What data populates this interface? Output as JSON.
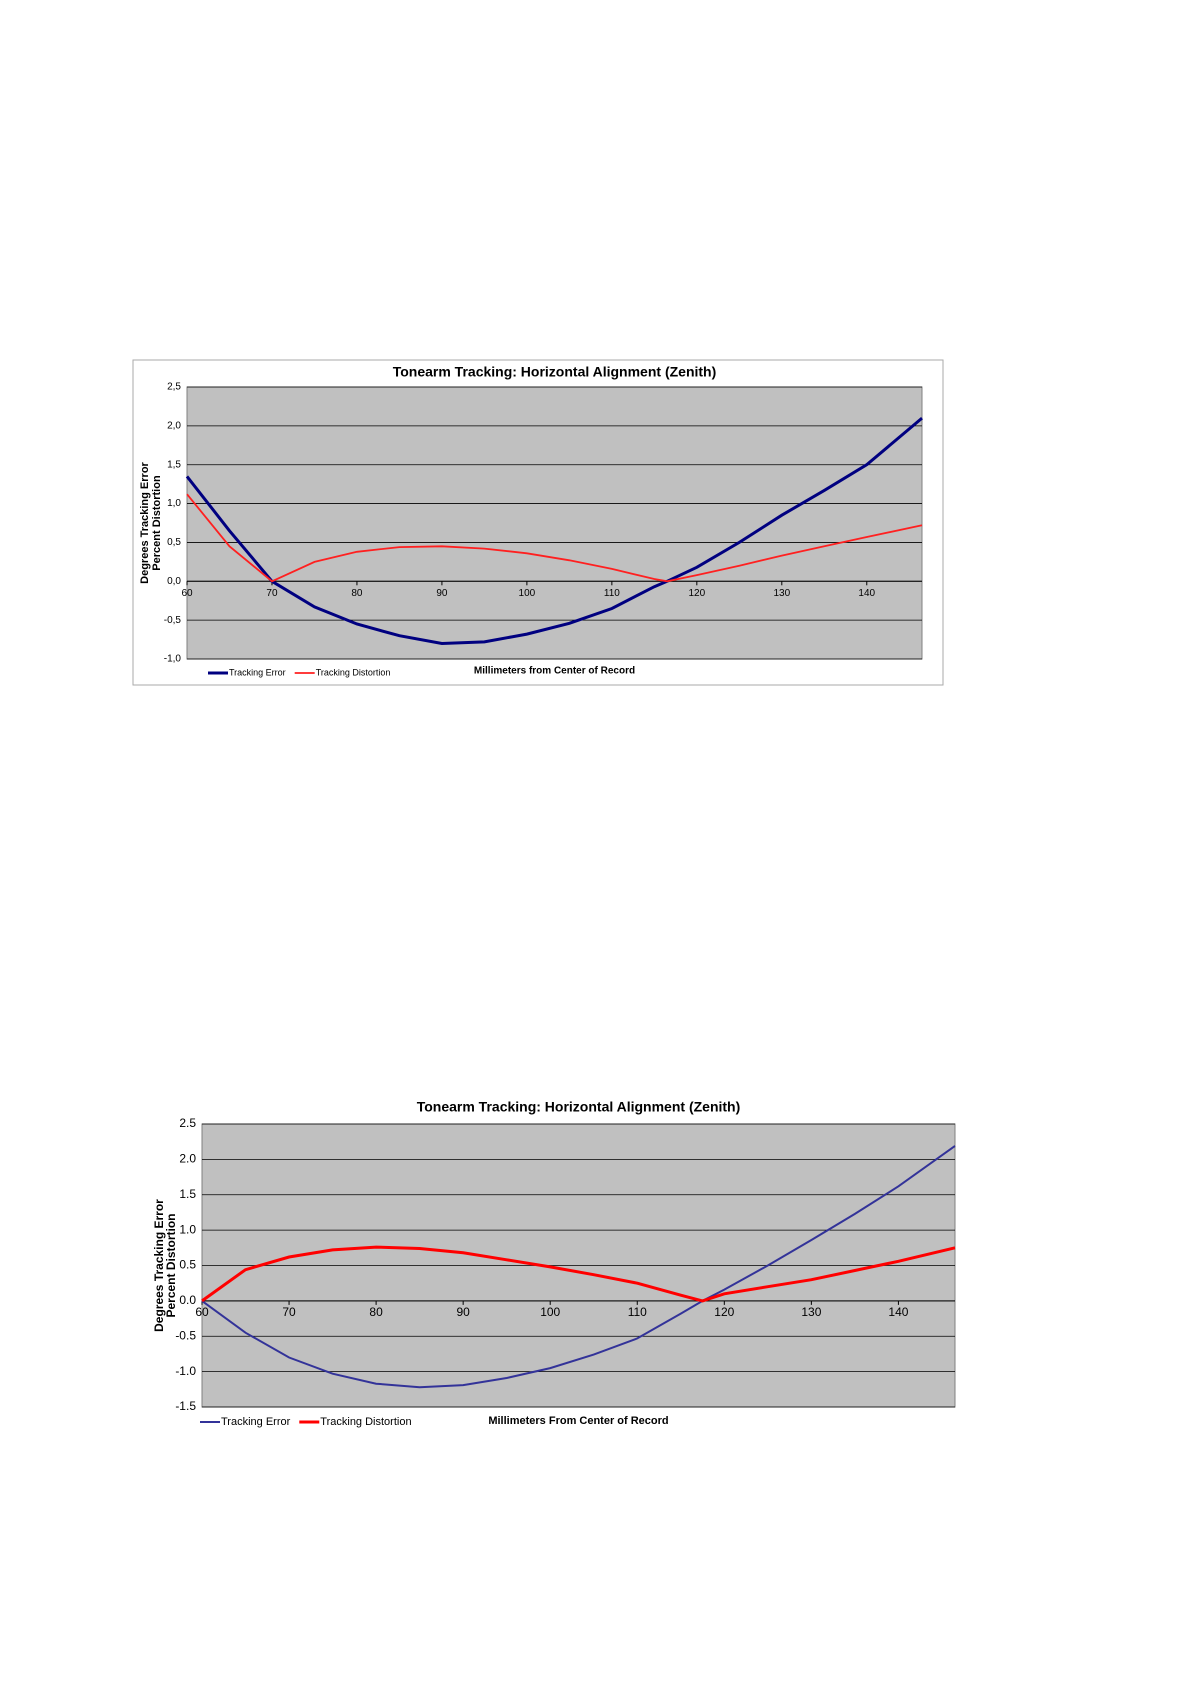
{
  "chart_data": [
    {
      "type": "line",
      "title": "Tonearm Tracking:  Horizontal Alignment (Zenith)",
      "xlabel": "Millimeters from Center of Record",
      "ylabel": [
        "Degrees Tracking Error",
        "Percent Distortion"
      ],
      "x": [
        60,
        65,
        70,
        75,
        80,
        85,
        90,
        95,
        100,
        105,
        110,
        115,
        116.5,
        120,
        125,
        130,
        135,
        140,
        146.5
      ],
      "series": [
        {
          "name": "Tracking Error",
          "color": "#000080",
          "values": [
            1.35,
            0.65,
            0,
            -0.33,
            -0.55,
            -0.7,
            -0.8,
            -0.78,
            -0.68,
            -0.54,
            -0.35,
            -0.07,
            0,
            0.18,
            0.5,
            0.85,
            1.17,
            1.5,
            2.1
          ]
        },
        {
          "name": "Tracking Distortion",
          "color": "#ff2020",
          "values": [
            1.12,
            0.45,
            0,
            0.25,
            0.38,
            0.44,
            0.45,
            0.42,
            0.36,
            0.27,
            0.16,
            0.03,
            0,
            0.08,
            0.2,
            0.33,
            0.45,
            0.57,
            0.72
          ]
        }
      ],
      "xlim": [
        60,
        146.5
      ],
      "xticks": [
        60,
        70,
        80,
        90,
        100,
        110,
        120,
        130,
        140
      ],
      "ylim": [
        -1,
        2.5
      ],
      "yticks": [
        {
          "value": 2.5,
          "label": "2,5"
        },
        {
          "value": 2,
          "label": "2,0"
        },
        {
          "value": 1.5,
          "label": "1,5"
        },
        {
          "value": 1,
          "label": "1,0"
        },
        {
          "value": 0.5,
          "label": "0,5"
        },
        {
          "value": 0,
          "label": "0,0"
        },
        {
          "value": -0.5,
          "label": "-0,5"
        },
        {
          "value": -1,
          "label": "-1,0"
        }
      ],
      "grid": true,
      "legend": "bottom-left"
    },
    {
      "type": "line",
      "title": "Tonearm Tracking:  Horizontal Alignment (Zenith)",
      "xlabel": "Millimeters From Center of Record",
      "ylabel": [
        "Degrees Tracking Error",
        "Percent Distortion"
      ],
      "x": [
        60,
        65,
        70,
        75,
        80,
        85,
        90,
        95,
        100,
        105,
        110,
        115,
        117.5,
        120,
        125,
        130,
        135,
        140,
        146.5
      ],
      "series": [
        {
          "name": "Tracking Error",
          "color": "#333399",
          "values": [
            0,
            -0.45,
            -0.8,
            -1.03,
            -1.17,
            -1.22,
            -1.19,
            -1.09,
            -0.95,
            -0.76,
            -0.53,
            -0.18,
            0,
            0.16,
            0.5,
            0.86,
            1.23,
            1.62,
            2.19
          ]
        },
        {
          "name": "Tracking Distortion",
          "color": "#ff0000",
          "values": [
            0,
            0.44,
            0.62,
            0.72,
            0.76,
            0.74,
            0.68,
            0.58,
            0.48,
            0.37,
            0.25,
            0.08,
            0,
            0.1,
            0.2,
            0.3,
            0.43,
            0.56,
            0.75
          ]
        }
      ],
      "xlim": [
        60,
        146.5
      ],
      "xticks": [
        60,
        70,
        80,
        90,
        100,
        110,
        120,
        130,
        140
      ],
      "ylim": [
        -1.5,
        2.5
      ],
      "yticks": [
        2.5,
        {
          "value": 2,
          "label": "2.0"
        },
        1.5,
        {
          "value": 1,
          "label": "1.0"
        },
        0.5,
        {
          "value": 0,
          "label": "0.0"
        },
        -0.5,
        {
          "value": -1,
          "label": "-1.0"
        },
        -1.5
      ],
      "grid": true,
      "legend": "bottom-left"
    }
  ]
}
